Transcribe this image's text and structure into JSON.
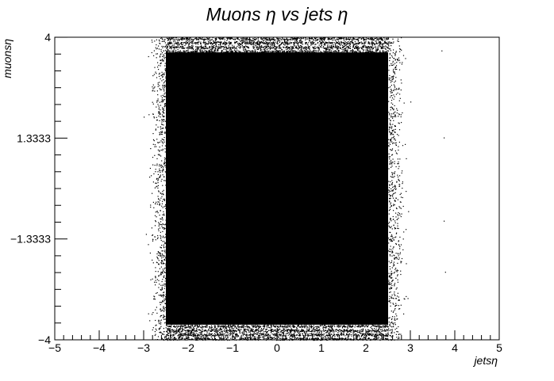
{
  "chart_data": {
    "type": "scatter",
    "title": "Muons   η   vs   jets   η",
    "xlabel": "jetsη",
    "ylabel": "muonsη",
    "xlim": [
      -5,
      5
    ],
    "ylim": [
      -4,
      4
    ],
    "x_ticks": [
      {
        "value": -5,
        "label": "−5"
      },
      {
        "value": -4,
        "label": "−4"
      },
      {
        "value": -3,
        "label": "−3"
      },
      {
        "value": -2,
        "label": "−2"
      },
      {
        "value": -1,
        "label": "−1"
      },
      {
        "value": 0,
        "label": "0"
      },
      {
        "value": 1,
        "label": "1"
      },
      {
        "value": 2,
        "label": "2"
      },
      {
        "value": 3,
        "label": "3"
      },
      {
        "value": 4,
        "label": "4"
      },
      {
        "value": 5,
        "label": "5"
      }
    ],
    "y_ticks": [
      {
        "value": -4,
        "label": "−4"
      },
      {
        "value": -1.3333,
        "label": "−1.3333"
      },
      {
        "value": 1.3333,
        "label": "1.3333"
      },
      {
        "value": 4,
        "label": "4"
      }
    ],
    "x_minor_step": 0.2,
    "y_minor_step": 0.4444,
    "dense_region": {
      "x": [
        -2.5,
        2.5
      ],
      "y": [
        -3.6,
        3.6
      ]
    },
    "outer_bands_y": [
      [
        -4,
        -3.6
      ],
      [
        3.6,
        4
      ]
    ],
    "grid": false,
    "legend": "none",
    "marker_color": "#000000"
  }
}
